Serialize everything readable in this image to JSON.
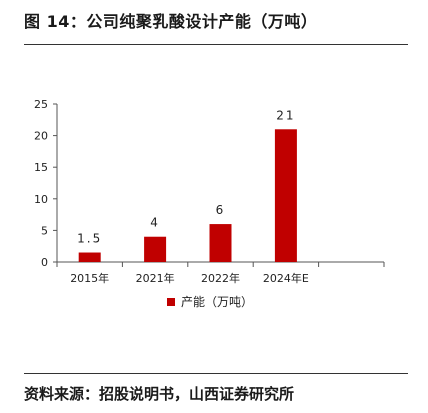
{
  "header": {
    "title": "图 14：公司纯聚乳酸设计产能（万吨）"
  },
  "footer": {
    "source": "资料来源：招股说明书，山西证券研究所"
  },
  "chart_data": {
    "type": "bar",
    "categories": [
      "2015年",
      "2021年",
      "2022年",
      "2024年E",
      ""
    ],
    "series": [
      {
        "name": "产能（万吨）",
        "values": [
          1.5,
          4,
          6,
          21,
          null
        ],
        "data_labels": [
          "1.5",
          "4",
          "6",
          "21",
          ""
        ],
        "color": "#c00000"
      }
    ],
    "ylim": [
      0,
      25
    ],
    "yticks": [
      0,
      5,
      10,
      15,
      20,
      25
    ],
    "grid": false,
    "legend": "bottom-center",
    "title": "",
    "xlabel": "",
    "ylabel": ""
  }
}
